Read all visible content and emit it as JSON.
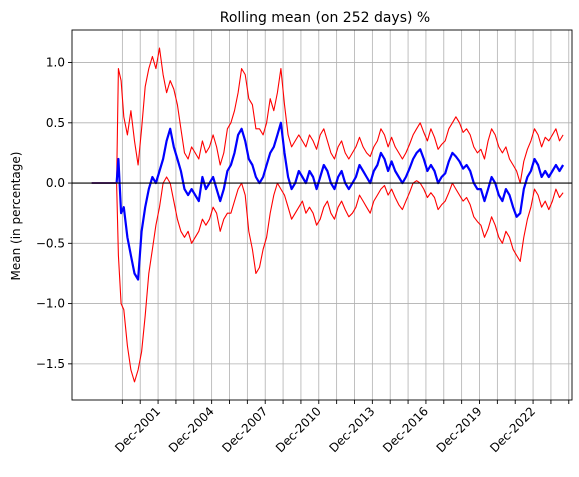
{
  "chart_data": {
    "type": "line",
    "title": "Rolling mean (on 252 days) %",
    "xlabel": "",
    "ylabel": "Mean (in percentage)",
    "xlim": [
      1997.1,
      2025.1
    ],
    "ylim": [
      -1.8,
      1.27
    ],
    "grid": true,
    "legend": "none",
    "x_ticks": [
      {
        "x": 1999.92,
        "label": ""
      },
      {
        "x": 2000.92,
        "label": ""
      },
      {
        "x": 2001.92,
        "label": "Dec-2001"
      },
      {
        "x": 2002.92,
        "label": ""
      },
      {
        "x": 2003.92,
        "label": ""
      },
      {
        "x": 2004.92,
        "label": "Dec-2004"
      },
      {
        "x": 2005.92,
        "label": ""
      },
      {
        "x": 2006.92,
        "label": ""
      },
      {
        "x": 2007.92,
        "label": "Dec-2007"
      },
      {
        "x": 2008.92,
        "label": ""
      },
      {
        "x": 2009.92,
        "label": ""
      },
      {
        "x": 2010.92,
        "label": "Dec-2010"
      },
      {
        "x": 2011.92,
        "label": ""
      },
      {
        "x": 2012.92,
        "label": ""
      },
      {
        "x": 2013.92,
        "label": "Dec-2013"
      },
      {
        "x": 2014.92,
        "label": ""
      },
      {
        "x": 2015.92,
        "label": ""
      },
      {
        "x": 2016.92,
        "label": "Dec-2016"
      },
      {
        "x": 2017.92,
        "label": ""
      },
      {
        "x": 2018.92,
        "label": ""
      },
      {
        "x": 2019.92,
        "label": "Dec-2019"
      },
      {
        "x": 2020.92,
        "label": ""
      },
      {
        "x": 2021.92,
        "label": ""
      },
      {
        "x": 2022.92,
        "label": "Dec-2022"
      },
      {
        "x": 2023.92,
        "label": ""
      },
      {
        "x": 2024.92,
        "label": ""
      }
    ],
    "y_ticks": [
      {
        "y": 1.0,
        "label": "1.0"
      },
      {
        "y": 0.5,
        "label": "0.5"
      },
      {
        "y": 0.0,
        "label": "0.0"
      },
      {
        "y": -0.5,
        "label": "−0.5"
      },
      {
        "y": -1.0,
        "label": "−1.0"
      },
      {
        "y": -1.5,
        "label": "−1.5"
      }
    ],
    "reference_line": {
      "y": 0.0,
      "color": "#000000"
    },
    "flat_start": {
      "x": [
        1998.2,
        1999.6
      ],
      "y": 0.0,
      "color": "#7a3c9e"
    },
    "series": [
      {
        "color": "#ff0000",
        "role": "upper band",
        "x": [
          1999.6,
          1999.7,
          1999.85,
          2000.0,
          2000.2,
          2000.4,
          2000.6,
          2000.8,
          2001.0,
          2001.2,
          2001.4,
          2001.6,
          2001.8,
          2002.0,
          2002.2,
          2002.4,
          2002.6,
          2002.8,
          2003.0,
          2003.2,
          2003.4,
          2003.6,
          2003.8,
          2004.0,
          2004.2,
          2004.4,
          2004.6,
          2004.8,
          2005.0,
          2005.2,
          2005.4,
          2005.6,
          2005.8,
          2006.0,
          2006.2,
          2006.4,
          2006.6,
          2006.8,
          2007.0,
          2007.2,
          2007.4,
          2007.6,
          2007.8,
          2008.0,
          2008.2,
          2008.4,
          2008.6,
          2008.8,
          2009.0,
          2009.2,
          2009.4,
          2009.6,
          2009.8,
          2010.0,
          2010.2,
          2010.4,
          2010.6,
          2010.8,
          2011.0,
          2011.2,
          2011.4,
          2011.6,
          2011.8,
          2012.0,
          2012.2,
          2012.4,
          2012.6,
          2012.8,
          2013.0,
          2013.2,
          2013.4,
          2013.6,
          2013.8,
          2014.0,
          2014.2,
          2014.4,
          2014.6,
          2014.8,
          2015.0,
          2015.2,
          2015.4,
          2015.6,
          2015.8,
          2016.0,
          2016.2,
          2016.4,
          2016.6,
          2016.8,
          2017.0,
          2017.2,
          2017.4,
          2017.6,
          2017.8,
          2018.0,
          2018.2,
          2018.4,
          2018.6,
          2018.8,
          2019.0,
          2019.2,
          2019.4,
          2019.6,
          2019.8,
          2020.0,
          2020.2,
          2020.4,
          2020.6,
          2020.8,
          2021.0,
          2021.2,
          2021.4,
          2021.6,
          2021.8,
          2022.0,
          2022.2,
          2022.4,
          2022.6,
          2022.8,
          2023.0,
          2023.2,
          2023.4,
          2023.6,
          2023.8,
          2024.0,
          2024.2,
          2024.4,
          2024.6
        ],
        "y": [
          0.0,
          0.95,
          0.85,
          0.55,
          0.4,
          0.6,
          0.35,
          0.15,
          0.45,
          0.8,
          0.95,
          1.05,
          0.95,
          1.12,
          0.9,
          0.75,
          0.85,
          0.78,
          0.65,
          0.45,
          0.25,
          0.2,
          0.3,
          0.25,
          0.2,
          0.35,
          0.25,
          0.3,
          0.4,
          0.3,
          0.15,
          0.25,
          0.45,
          0.5,
          0.6,
          0.75,
          0.95,
          0.9,
          0.7,
          0.65,
          0.45,
          0.45,
          0.4,
          0.5,
          0.7,
          0.6,
          0.75,
          0.95,
          0.65,
          0.4,
          0.3,
          0.35,
          0.4,
          0.35,
          0.3,
          0.4,
          0.35,
          0.28,
          0.4,
          0.45,
          0.35,
          0.25,
          0.2,
          0.3,
          0.35,
          0.25,
          0.2,
          0.25,
          0.3,
          0.38,
          0.3,
          0.25,
          0.22,
          0.3,
          0.35,
          0.45,
          0.4,
          0.3,
          0.38,
          0.3,
          0.25,
          0.2,
          0.25,
          0.32,
          0.4,
          0.45,
          0.5,
          0.42,
          0.35,
          0.45,
          0.38,
          0.28,
          0.32,
          0.35,
          0.45,
          0.5,
          0.55,
          0.5,
          0.42,
          0.45,
          0.4,
          0.3,
          0.25,
          0.28,
          0.2,
          0.35,
          0.45,
          0.4,
          0.3,
          0.25,
          0.3,
          0.2,
          0.15,
          0.1,
          0.0,
          0.18,
          0.28,
          0.35,
          0.45,
          0.4,
          0.3,
          0.38,
          0.35,
          0.4,
          0.45,
          0.35,
          0.4
        ]
      },
      {
        "color": "#0000ff",
        "role": "rolling mean",
        "x": [
          1999.6,
          1999.7,
          1999.85,
          2000.0,
          2000.2,
          2000.4,
          2000.6,
          2000.8,
          2001.0,
          2001.2,
          2001.4,
          2001.6,
          2001.8,
          2002.0,
          2002.2,
          2002.4,
          2002.6,
          2002.8,
          2003.0,
          2003.2,
          2003.4,
          2003.6,
          2003.8,
          2004.0,
          2004.2,
          2004.4,
          2004.6,
          2004.8,
          2005.0,
          2005.2,
          2005.4,
          2005.6,
          2005.8,
          2006.0,
          2006.2,
          2006.4,
          2006.6,
          2006.8,
          2007.0,
          2007.2,
          2007.4,
          2007.6,
          2007.8,
          2008.0,
          2008.2,
          2008.4,
          2008.6,
          2008.8,
          2009.0,
          2009.2,
          2009.4,
          2009.6,
          2009.8,
          2010.0,
          2010.2,
          2010.4,
          2010.6,
          2010.8,
          2011.0,
          2011.2,
          2011.4,
          2011.6,
          2011.8,
          2012.0,
          2012.2,
          2012.4,
          2012.6,
          2012.8,
          2013.0,
          2013.2,
          2013.4,
          2013.6,
          2013.8,
          2014.0,
          2014.2,
          2014.4,
          2014.6,
          2014.8,
          2015.0,
          2015.2,
          2015.4,
          2015.6,
          2015.8,
          2016.0,
          2016.2,
          2016.4,
          2016.6,
          2016.8,
          2017.0,
          2017.2,
          2017.4,
          2017.6,
          2017.8,
          2018.0,
          2018.2,
          2018.4,
          2018.6,
          2018.8,
          2019.0,
          2019.2,
          2019.4,
          2019.6,
          2019.8,
          2020.0,
          2020.2,
          2020.4,
          2020.6,
          2020.8,
          2021.0,
          2021.2,
          2021.4,
          2021.6,
          2021.8,
          2022.0,
          2022.2,
          2022.4,
          2022.6,
          2022.8,
          2023.0,
          2023.2,
          2023.4,
          2023.6,
          2023.8,
          2024.0,
          2024.2,
          2024.4,
          2024.6
        ],
        "y": [
          0.0,
          0.2,
          -0.25,
          -0.2,
          -0.45,
          -0.6,
          -0.75,
          -0.8,
          -0.4,
          -0.2,
          -0.05,
          0.05,
          0.0,
          0.1,
          0.2,
          0.35,
          0.45,
          0.3,
          0.2,
          0.1,
          -0.05,
          -0.1,
          -0.05,
          -0.1,
          -0.15,
          0.05,
          -0.05,
          0.0,
          0.05,
          -0.05,
          -0.15,
          -0.05,
          0.1,
          0.15,
          0.25,
          0.4,
          0.45,
          0.35,
          0.2,
          0.15,
          0.05,
          0.0,
          0.05,
          0.15,
          0.25,
          0.3,
          0.4,
          0.5,
          0.25,
          0.05,
          -0.05,
          0.0,
          0.1,
          0.05,
          0.0,
          0.1,
          0.05,
          -0.05,
          0.05,
          0.15,
          0.1,
          0.0,
          -0.05,
          0.05,
          0.1,
          0.0,
          -0.05,
          0.0,
          0.05,
          0.15,
          0.1,
          0.05,
          0.0,
          0.1,
          0.15,
          0.25,
          0.2,
          0.1,
          0.18,
          0.1,
          0.05,
          0.0,
          0.05,
          0.12,
          0.2,
          0.25,
          0.28,
          0.2,
          0.1,
          0.15,
          0.1,
          0.0,
          0.05,
          0.08,
          0.18,
          0.25,
          0.22,
          0.18,
          0.12,
          0.15,
          0.1,
          0.0,
          -0.05,
          -0.05,
          -0.15,
          -0.05,
          0.05,
          0.0,
          -0.1,
          -0.15,
          -0.05,
          -0.1,
          -0.2,
          -0.28,
          -0.25,
          -0.05,
          0.05,
          0.1,
          0.2,
          0.15,
          0.05,
          0.1,
          0.05,
          0.1,
          0.15,
          0.1,
          0.15
        ]
      },
      {
        "color": "#ff0000",
        "role": "lower band",
        "x": [
          1999.6,
          1999.7,
          1999.85,
          2000.0,
          2000.2,
          2000.4,
          2000.6,
          2000.8,
          2001.0,
          2001.2,
          2001.4,
          2001.6,
          2001.8,
          2002.0,
          2002.2,
          2002.4,
          2002.6,
          2002.8,
          2003.0,
          2003.2,
          2003.4,
          2003.6,
          2003.8,
          2004.0,
          2004.2,
          2004.4,
          2004.6,
          2004.8,
          2005.0,
          2005.2,
          2005.4,
          2005.6,
          2005.8,
          2006.0,
          2006.2,
          2006.4,
          2006.6,
          2006.8,
          2007.0,
          2007.2,
          2007.4,
          2007.6,
          2007.8,
          2008.0,
          2008.2,
          2008.4,
          2008.6,
          2008.8,
          2009.0,
          2009.2,
          2009.4,
          2009.6,
          2009.8,
          2010.0,
          2010.2,
          2010.4,
          2010.6,
          2010.8,
          2011.0,
          2011.2,
          2011.4,
          2011.6,
          2011.8,
          2012.0,
          2012.2,
          2012.4,
          2012.6,
          2012.8,
          2013.0,
          2013.2,
          2013.4,
          2013.6,
          2013.8,
          2014.0,
          2014.2,
          2014.4,
          2014.6,
          2014.8,
          2015.0,
          2015.2,
          2015.4,
          2015.6,
          2015.8,
          2016.0,
          2016.2,
          2016.4,
          2016.6,
          2016.8,
          2017.0,
          2017.2,
          2017.4,
          2017.6,
          2017.8,
          2018.0,
          2018.2,
          2018.4,
          2018.6,
          2018.8,
          2019.0,
          2019.2,
          2019.4,
          2019.6,
          2019.8,
          2020.0,
          2020.2,
          2020.4,
          2020.6,
          2020.8,
          2021.0,
          2021.2,
          2021.4,
          2021.6,
          2021.8,
          2022.0,
          2022.2,
          2022.4,
          2022.6,
          2022.8,
          2023.0,
          2023.2,
          2023.4,
          2023.6,
          2023.8,
          2024.0,
          2024.2,
          2024.4,
          2024.6
        ],
        "y": [
          0.0,
          -0.6,
          -1.0,
          -1.05,
          -1.35,
          -1.55,
          -1.65,
          -1.55,
          -1.4,
          -1.1,
          -0.75,
          -0.55,
          -0.35,
          -0.2,
          0.0,
          0.05,
          0.0,
          -0.15,
          -0.3,
          -0.4,
          -0.45,
          -0.4,
          -0.5,
          -0.45,
          -0.4,
          -0.3,
          -0.35,
          -0.3,
          -0.2,
          -0.25,
          -0.4,
          -0.3,
          -0.25,
          -0.25,
          -0.15,
          -0.05,
          0.0,
          -0.1,
          -0.4,
          -0.55,
          -0.75,
          -0.7,
          -0.55,
          -0.45,
          -0.25,
          -0.1,
          0.0,
          -0.05,
          -0.1,
          -0.2,
          -0.3,
          -0.25,
          -0.2,
          -0.15,
          -0.25,
          -0.2,
          -0.25,
          -0.35,
          -0.3,
          -0.2,
          -0.15,
          -0.25,
          -0.3,
          -0.2,
          -0.15,
          -0.22,
          -0.28,
          -0.25,
          -0.2,
          -0.1,
          -0.15,
          -0.2,
          -0.25,
          -0.15,
          -0.1,
          -0.05,
          -0.02,
          -0.1,
          -0.05,
          -0.12,
          -0.18,
          -0.22,
          -0.15,
          -0.08,
          0.0,
          0.02,
          0.0,
          -0.05,
          -0.12,
          -0.08,
          -0.12,
          -0.22,
          -0.18,
          -0.15,
          -0.08,
          0.0,
          -0.05,
          -0.1,
          -0.15,
          -0.12,
          -0.18,
          -0.28,
          -0.32,
          -0.35,
          -0.45,
          -0.38,
          -0.28,
          -0.35,
          -0.45,
          -0.5,
          -0.4,
          -0.45,
          -0.55,
          -0.6,
          -0.65,
          -0.45,
          -0.3,
          -0.2,
          -0.05,
          -0.1,
          -0.2,
          -0.15,
          -0.22,
          -0.15,
          -0.05,
          -0.12,
          -0.08
        ]
      }
    ]
  }
}
